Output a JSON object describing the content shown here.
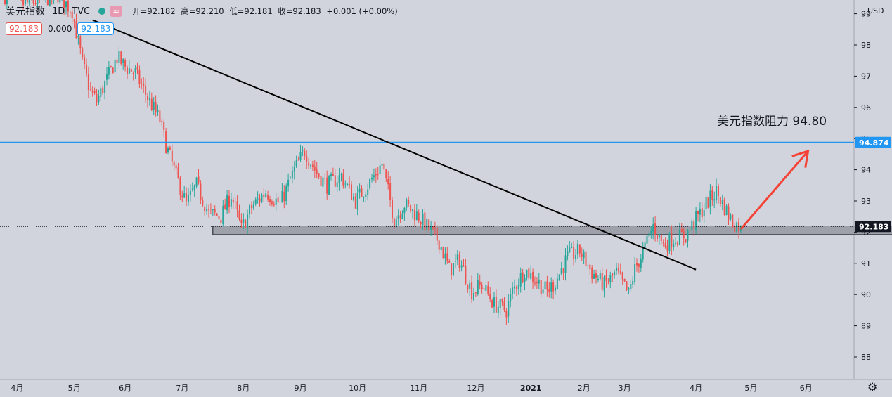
{
  "header": {
    "symbol": "美元指数",
    "interval": "1D",
    "source": "TVC",
    "ohlc": {
      "open": "开=92.182",
      "high": "高=92.210",
      "low": "低=92.181",
      "close": "收=92.183",
      "change": "+0.001 (+0.00%)"
    }
  },
  "price_boxes": {
    "bid": "92.183",
    "spread": "0.000",
    "ask": "92.183"
  },
  "annotation": {
    "text": "美元指数阻力 94.80"
  },
  "colors": {
    "background": "#d1d4dc",
    "up": "#26a69a",
    "down": "#ef5350",
    "resistance_line": "#2196f3",
    "trendline": "#000000",
    "arrow": "#f44336",
    "support_zone": "#9598a1"
  },
  "icons": [
    "status-dot-icon",
    "wave-icon",
    "gear-icon"
  ],
  "chart_data": {
    "type": "candlestick",
    "y_axis": {
      "unit": "USD",
      "min": 87.6,
      "max": 99.2,
      "ticks": [
        88,
        89,
        90,
        91,
        92,
        93,
        94,
        95,
        96,
        97,
        98,
        99
      ]
    },
    "x_axis": {
      "labels": [
        "4月",
        "5月",
        "6月",
        "7月",
        "8月",
        "9月",
        "10月",
        "11月",
        "12月",
        "2021",
        "2月",
        "3月",
        "4月",
        "5月",
        "6月"
      ]
    },
    "price_path": [
      [
        0,
        99.6
      ],
      [
        8,
        99.3
      ],
      [
        26,
        99.6
      ],
      [
        33,
        99.1
      ],
      [
        38,
        97.4
      ],
      [
        42,
        96.5
      ],
      [
        45,
        96.2
      ],
      [
        50,
        96.9
      ],
      [
        55,
        97.6
      ],
      [
        59,
        97.3
      ],
      [
        64,
        97.1
      ],
      [
        70,
        96.3
      ],
      [
        76,
        95.6
      ],
      [
        79,
        94.8
      ],
      [
        84,
        93.8
      ],
      [
        89,
        92.9
      ],
      [
        94,
        93.5
      ],
      [
        100,
        92.6
      ],
      [
        106,
        92.5
      ],
      [
        111,
        93.2
      ],
      [
        116,
        92.1
      ],
      [
        121,
        92.8
      ],
      [
        128,
        93.3
      ],
      [
        135,
        92.9
      ],
      [
        142,
        94.0
      ],
      [
        147,
        94.6
      ],
      [
        153,
        93.9
      ],
      [
        158,
        93.5
      ],
      [
        165,
        93.8
      ],
      [
        172,
        93.0
      ],
      [
        179,
        93.6
      ],
      [
        185,
        94.2
      ],
      [
        191,
        92.4
      ],
      [
        196,
        92.9
      ],
      [
        203,
        92.5
      ],
      [
        208,
        92.1
      ],
      [
        213,
        91.7
      ],
      [
        218,
        90.8
      ],
      [
        223,
        91.1
      ],
      [
        229,
        90.1
      ],
      [
        234,
        90.3
      ],
      [
        240,
        89.7
      ],
      [
        246,
        89.5
      ],
      [
        249,
        90.1
      ],
      [
        255,
        90.8
      ],
      [
        260,
        90.5
      ],
      [
        266,
        90.1
      ],
      [
        270,
        90.4
      ],
      [
        276,
        91.2
      ],
      [
        282,
        91.4
      ],
      [
        288,
        90.7
      ],
      [
        294,
        90.3
      ],
      [
        300,
        90.7
      ],
      [
        306,
        90.0
      ],
      [
        309,
        90.8
      ],
      [
        314,
        91.5
      ],
      [
        318,
        92.2
      ],
      [
        323,
        91.6
      ],
      [
        328,
        91.8
      ],
      [
        334,
        91.9
      ],
      [
        340,
        92.5
      ],
      [
        344,
        92.9
      ],
      [
        349,
        93.3
      ],
      [
        353,
        92.8
      ],
      [
        357,
        92.3
      ],
      [
        361,
        92.18
      ]
    ],
    "levels": [
      {
        "price": 94.874,
        "label": "94.874"
      },
      {
        "price": 92.183,
        "label": "92.183"
      }
    ],
    "support_zone": {
      "low": 91.92,
      "high": 92.2,
      "from_bar": 102,
      "to_bar": 438
    },
    "trendline": {
      "from": [
        43,
        98.8
      ],
      "to": [
        339,
        90.8
      ]
    },
    "arrow": {
      "from": [
        361,
        92.1
      ],
      "to": [
        394,
        94.6
      ]
    }
  }
}
